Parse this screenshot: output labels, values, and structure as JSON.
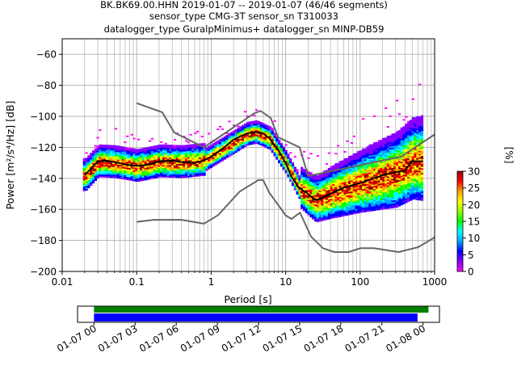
{
  "header": {
    "line1": "BK.BK69.00.HHN   2019-01-07 -- 2019-01-07  (46/46 segments)",
    "line2": "sensor_type CMG-3T sensor_sn T310033",
    "line3": "datalogger_type GuralpMinimus+ datalogger_sn MINP-DB59"
  },
  "chart_data": [
    {
      "type": "heatmap",
      "chart_kind": "probabilistic power spectral density",
      "xlabel": "Period [s]",
      "ylabel": "Power [m²/s⁴/Hz] [dB]",
      "x_scale": "log",
      "xlim": [
        0.01,
        1000
      ],
      "ylim": [
        -200,
        -50
      ],
      "x_ticks": [
        0.01,
        0.1,
        1,
        10,
        100,
        1000
      ],
      "x_tick_labels": [
        "0.01",
        "0.1",
        "1",
        "10",
        "100",
        "1000"
      ],
      "y_ticks": [
        -200,
        -180,
        -160,
        -140,
        -120,
        -100,
        -80,
        -60
      ],
      "y_tick_labels": [
        "−200",
        "−180",
        "−160",
        "−140",
        "−120",
        "−100",
        "−80",
        "−60"
      ],
      "grid": true,
      "colorbar": {
        "label": "[%]",
        "range": [
          0,
          30
        ],
        "ticks": [
          0,
          5,
          10,
          15,
          20,
          25,
          30
        ],
        "tick_labels": [
          "0",
          "5",
          "10",
          "15",
          "20",
          "25",
          "30"
        ]
      },
      "new_high_noise_model": [
        [
          0.1,
          -91.5
        ],
        [
          0.22,
          -97.4
        ],
        [
          0.32,
          -110.5
        ],
        [
          0.8,
          -120
        ],
        [
          3.8,
          -98
        ],
        [
          4.6,
          -96.5
        ],
        [
          6.3,
          -101
        ],
        [
          7.9,
          -113.5
        ],
        [
          15.4,
          -120
        ],
        [
          20,
          -138.5
        ],
        [
          354.8,
          -126
        ],
        [
          10000,
          -80
        ]
      ],
      "new_low_noise_model": [
        [
          0.1,
          -168
        ],
        [
          0.17,
          -166.7
        ],
        [
          0.4,
          -166.7
        ],
        [
          0.8,
          -169.2
        ],
        [
          1.24,
          -163.7
        ],
        [
          2.4,
          -148.6
        ],
        [
          4.3,
          -141.1
        ],
        [
          5,
          -141.1
        ],
        [
          6,
          -149
        ],
        [
          10,
          -163.8
        ],
        [
          12,
          -166.2
        ],
        [
          15.6,
          -162.1
        ],
        [
          21.9,
          -177.5
        ],
        [
          31.6,
          -185
        ],
        [
          45,
          -187.5
        ],
        [
          70,
          -187.5
        ],
        [
          101,
          -185
        ],
        [
          154,
          -185
        ],
        [
          328,
          -187.5
        ],
        [
          600,
          -184.4
        ],
        [
          1000,
          -178
        ]
      ],
      "median": [
        [
          0.02,
          -138
        ],
        [
          0.025,
          -133
        ],
        [
          0.03,
          -129
        ],
        [
          0.04,
          -128.5
        ],
        [
          0.05,
          -129.5
        ],
        [
          0.07,
          -131
        ],
        [
          0.1,
          -132
        ],
        [
          0.15,
          -131
        ],
        [
          0.2,
          -129
        ],
        [
          0.3,
          -128.5
        ],
        [
          0.4,
          -129.5
        ],
        [
          0.6,
          -130
        ],
        [
          0.8,
          -128.5
        ],
        [
          1,
          -126
        ],
        [
          1.5,
          -120
        ],
        [
          2,
          -115
        ],
        [
          3,
          -111
        ],
        [
          4,
          -110
        ],
        [
          5,
          -111
        ],
        [
          6,
          -114
        ],
        [
          8,
          -122
        ],
        [
          10,
          -130
        ],
        [
          12,
          -139
        ],
        [
          15,
          -146
        ],
        [
          20,
          -150
        ],
        [
          25,
          -154
        ],
        [
          30,
          -153
        ],
        [
          40,
          -150
        ],
        [
          60,
          -146
        ],
        [
          100,
          -143
        ],
        [
          150,
          -140
        ],
        [
          200,
          -138
        ],
        [
          300,
          -136
        ],
        [
          400,
          -135
        ],
        [
          500,
          -129
        ],
        [
          700,
          -129
        ]
      ],
      "mode_range": [
        [
          0.02,
          -139
        ],
        [
          0.03,
          -130
        ],
        [
          0.05,
          -130.5
        ],
        [
          0.1,
          -133
        ],
        [
          0.2,
          -130
        ],
        [
          0.4,
          -130.5
        ],
        [
          0.8,
          -129
        ],
        [
          1.5,
          -121
        ],
        [
          3,
          -112
        ],
        [
          4,
          -111
        ],
        [
          6,
          -115
        ],
        [
          10,
          -131
        ],
        [
          15,
          -147
        ],
        [
          25,
          -155
        ],
        [
          40,
          -151
        ],
        [
          100,
          -144
        ],
        [
          300,
          -137
        ],
        [
          500,
          -130
        ],
        [
          700,
          -130
        ]
      ]
    },
    {
      "type": "timeline",
      "ticks": [
        "01-07 00",
        "01-07 03",
        "01-07 06",
        "01-07 09",
        "01-07 12",
        "01-07 15",
        "01-07 18",
        "01-07 21",
        "01-08 00"
      ],
      "tick_hours": [
        0,
        3,
        6,
        9,
        12,
        15,
        18,
        21,
        24
      ],
      "xlim_hours": [
        -1.2,
        25.2
      ],
      "data_coverage_hours": [
        0,
        24.4
      ],
      "psd_coverage_hours": [
        0,
        23.6
      ],
      "data_color": "#008000",
      "psd_color": "#0000ff"
    }
  ],
  "colors": {
    "noise_model": "#666666",
    "median": "#000000",
    "grid": "#b0b0b0",
    "colormap": [
      "#ff00ff",
      "#8800ff",
      "#0000ff",
      "#00a8ff",
      "#00ffff",
      "#00ff00",
      "#99ff00",
      "#ffff00",
      "#ffa000",
      "#ff0000",
      "#990000"
    ]
  }
}
